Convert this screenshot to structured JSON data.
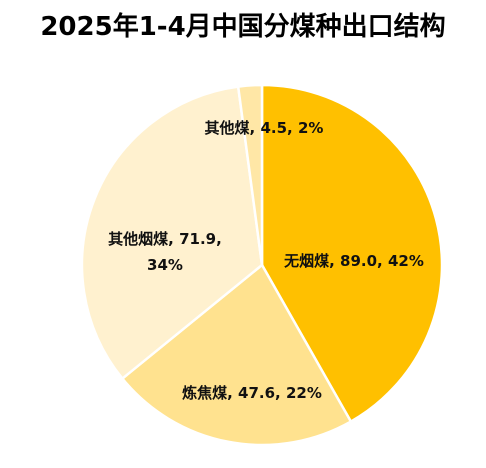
{
  "chart_data": {
    "type": "pie",
    "title": "2025年1-4月中国分煤种出口结构",
    "slices": [
      {
        "name": "无烟煤",
        "value": 89.0,
        "percent": 42,
        "color": "#FFC000",
        "label_lines": [
          "无烟煤, 89.0, 42%"
        ]
      },
      {
        "name": "炼焦煤",
        "value": 47.6,
        "percent": 22,
        "color": "#FFE28F",
        "label_lines": [
          "炼焦煤, 47.6, 22%"
        ]
      },
      {
        "name": "其他烟煤",
        "value": 71.9,
        "percent": 34,
        "color": "#FFF1CF",
        "label_lines": [
          "其他烟煤, 71.9,",
          "34%"
        ]
      },
      {
        "name": "其他煤",
        "value": 4.5,
        "percent": 2,
        "color": "#FFE7A6",
        "label_lines": [
          "其他煤, 4.5, 2%"
        ]
      }
    ]
  }
}
